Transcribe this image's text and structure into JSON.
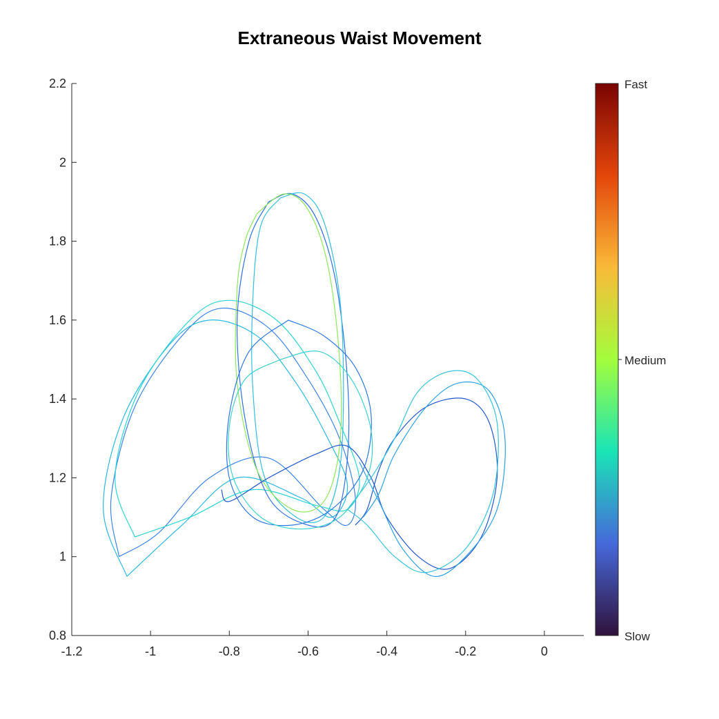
{
  "chart_data": {
    "type": "line",
    "title": "Extraneous Waist Movement",
    "xlim": [
      -1.2,
      0.1
    ],
    "ylim": [
      0.8,
      2.2
    ],
    "x_ticks": [
      -1.2,
      -1,
      -0.8,
      -0.6,
      -0.4,
      -0.2,
      0
    ],
    "x_tick_labels": [
      "-1.2",
      "-1",
      "-0.8",
      "-0.6",
      "-0.4",
      "-0.2",
      "0"
    ],
    "y_ticks": [
      0.8,
      1,
      1.2,
      1.4,
      1.6,
      1.8,
      2,
      2.2
    ],
    "y_tick_labels": [
      "0.8",
      "1",
      "1.2",
      "1.4",
      "1.6",
      "1.8",
      "2",
      "2.2"
    ],
    "grid": false,
    "colorbar": {
      "colormap": "turbo",
      "labels": [
        "Slow",
        "Medium",
        "Fast"
      ],
      "colors": [
        "#30123b",
        "#4669da",
        "#1ae4b6",
        "#a3fd3c",
        "#f9ba38",
        "#e4460a",
        "#7a0403"
      ]
    },
    "series": [
      {
        "color": "#3b82e8",
        "values": [
          [
            -1.08,
            1.0
          ],
          [
            -1.1,
            1.15
          ],
          [
            -1.04,
            1.38
          ],
          [
            -0.92,
            1.56
          ],
          [
            -0.82,
            1.63
          ],
          [
            -0.7,
            1.58
          ],
          [
            -0.6,
            1.45
          ],
          [
            -0.52,
            1.3
          ],
          [
            -0.48,
            1.15
          ],
          [
            -0.5,
            1.08
          ],
          [
            -0.56,
            1.12
          ],
          [
            -0.7,
            1.25
          ],
          [
            -0.85,
            1.2
          ],
          [
            -0.98,
            1.06
          ],
          [
            -1.08,
            1.0
          ]
        ]
      },
      {
        "color": "#29b8e0",
        "values": [
          [
            -1.06,
            0.95
          ],
          [
            -1.12,
            1.12
          ],
          [
            -1.07,
            1.35
          ],
          [
            -0.95,
            1.54
          ],
          [
            -0.85,
            1.6
          ],
          [
            -0.73,
            1.56
          ],
          [
            -0.63,
            1.44
          ],
          [
            -0.55,
            1.3
          ],
          [
            -0.5,
            1.18
          ],
          [
            -0.54,
            1.1
          ],
          [
            -0.62,
            1.15
          ],
          [
            -0.78,
            1.2
          ],
          [
            -0.92,
            1.08
          ],
          [
            -1.06,
            0.95
          ]
        ]
      },
      {
        "color": "#2bd4d4",
        "values": [
          [
            -1.04,
            1.05
          ],
          [
            -1.09,
            1.2
          ],
          [
            -1.03,
            1.42
          ],
          [
            -0.9,
            1.6
          ],
          [
            -0.8,
            1.65
          ],
          [
            -0.68,
            1.6
          ],
          [
            -0.58,
            1.47
          ],
          [
            -0.52,
            1.34
          ],
          [
            -0.47,
            1.2
          ],
          [
            -0.5,
            1.12
          ],
          [
            -0.58,
            1.13
          ],
          [
            -0.74,
            1.17
          ],
          [
            -0.9,
            1.1
          ],
          [
            -1.04,
            1.05
          ]
        ]
      },
      {
        "color": "#2f6fe4",
        "values": [
          [
            -0.7,
            1.9
          ],
          [
            -0.64,
            1.92
          ],
          [
            -0.58,
            1.86
          ],
          [
            -0.53,
            1.7
          ],
          [
            -0.5,
            1.45
          ],
          [
            -0.5,
            1.25
          ],
          [
            -0.53,
            1.1
          ],
          [
            -0.6,
            1.08
          ],
          [
            -0.7,
            1.15
          ],
          [
            -0.76,
            1.35
          ],
          [
            -0.78,
            1.6
          ],
          [
            -0.75,
            1.8
          ],
          [
            -0.7,
            1.9
          ]
        ]
      },
      {
        "color": "#31c0dc",
        "values": [
          [
            -0.67,
            1.91
          ],
          [
            -0.61,
            1.92
          ],
          [
            -0.56,
            1.85
          ],
          [
            -0.52,
            1.66
          ],
          [
            -0.51,
            1.42
          ],
          [
            -0.52,
            1.22
          ],
          [
            -0.56,
            1.1
          ],
          [
            -0.63,
            1.1
          ],
          [
            -0.71,
            1.2
          ],
          [
            -0.74,
            1.42
          ],
          [
            -0.74,
            1.66
          ],
          [
            -0.72,
            1.84
          ],
          [
            -0.67,
            1.91
          ]
        ]
      },
      {
        "color": "#8ce85a",
        "values": [
          [
            -0.73,
            1.87
          ],
          [
            -0.66,
            1.92
          ],
          [
            -0.6,
            1.88
          ],
          [
            -0.55,
            1.74
          ],
          [
            -0.52,
            1.5
          ],
          [
            -0.52,
            1.28
          ],
          [
            -0.56,
            1.14
          ],
          [
            -0.64,
            1.12
          ],
          [
            -0.73,
            1.22
          ],
          [
            -0.78,
            1.44
          ],
          [
            -0.78,
            1.68
          ],
          [
            -0.76,
            1.8
          ],
          [
            -0.73,
            1.87
          ]
        ]
      },
      {
        "color": "#1f55cc",
        "values": [
          [
            -0.48,
            1.08
          ],
          [
            -0.45,
            1.12
          ],
          [
            -0.42,
            1.22
          ],
          [
            -0.38,
            1.3
          ],
          [
            -0.3,
            1.38
          ],
          [
            -0.2,
            1.4
          ],
          [
            -0.14,
            1.34
          ],
          [
            -0.12,
            1.2
          ],
          [
            -0.16,
            1.05
          ],
          [
            -0.24,
            0.97
          ],
          [
            -0.32,
            1.0
          ],
          [
            -0.4,
            1.1
          ],
          [
            -0.44,
            1.2
          ],
          [
            -0.5,
            1.28
          ],
          [
            -0.58,
            1.26
          ],
          [
            -0.7,
            1.2
          ],
          [
            -0.8,
            1.14
          ],
          [
            -0.82,
            1.17
          ]
        ]
      },
      {
        "color": "#2aa0e6",
        "values": [
          [
            -0.46,
            1.1
          ],
          [
            -0.42,
            1.16
          ],
          [
            -0.38,
            1.26
          ],
          [
            -0.3,
            1.38
          ],
          [
            -0.22,
            1.44
          ],
          [
            -0.14,
            1.42
          ],
          [
            -0.1,
            1.3
          ],
          [
            -0.12,
            1.12
          ],
          [
            -0.2,
            1.0
          ],
          [
            -0.28,
            0.95
          ],
          [
            -0.36,
            1.02
          ],
          [
            -0.42,
            1.14
          ],
          [
            -0.47,
            1.24
          ]
        ]
      },
      {
        "color": "#34c4de",
        "values": [
          [
            -0.5,
            1.12
          ],
          [
            -0.44,
            1.2
          ],
          [
            -0.38,
            1.3
          ],
          [
            -0.32,
            1.42
          ],
          [
            -0.24,
            1.47
          ],
          [
            -0.17,
            1.45
          ],
          [
            -0.12,
            1.34
          ],
          [
            -0.13,
            1.16
          ],
          [
            -0.2,
            1.02
          ],
          [
            -0.3,
            0.96
          ],
          [
            -0.38,
            1.0
          ],
          [
            -0.45,
            1.08
          ],
          [
            -0.5,
            1.12
          ]
        ]
      },
      {
        "color": "#2d78e0",
        "values": [
          [
            -0.65,
            1.6
          ],
          [
            -0.56,
            1.56
          ],
          [
            -0.48,
            1.48
          ],
          [
            -0.44,
            1.36
          ],
          [
            -0.46,
            1.22
          ],
          [
            -0.54,
            1.12
          ],
          [
            -0.64,
            1.08
          ],
          [
            -0.74,
            1.1
          ],
          [
            -0.8,
            1.2
          ],
          [
            -0.8,
            1.36
          ],
          [
            -0.75,
            1.52
          ],
          [
            -0.65,
            1.6
          ]
        ]
      },
      {
        "color": "#3ad0d0",
        "values": [
          [
            -0.67,
            1.5
          ],
          [
            -0.57,
            1.52
          ],
          [
            -0.49,
            1.45
          ],
          [
            -0.44,
            1.32
          ],
          [
            -0.45,
            1.2
          ],
          [
            -0.52,
            1.1
          ],
          [
            -0.62,
            1.07
          ],
          [
            -0.72,
            1.1
          ],
          [
            -0.79,
            1.2
          ],
          [
            -0.8,
            1.33
          ],
          [
            -0.76,
            1.45
          ],
          [
            -0.67,
            1.5
          ]
        ]
      }
    ]
  }
}
